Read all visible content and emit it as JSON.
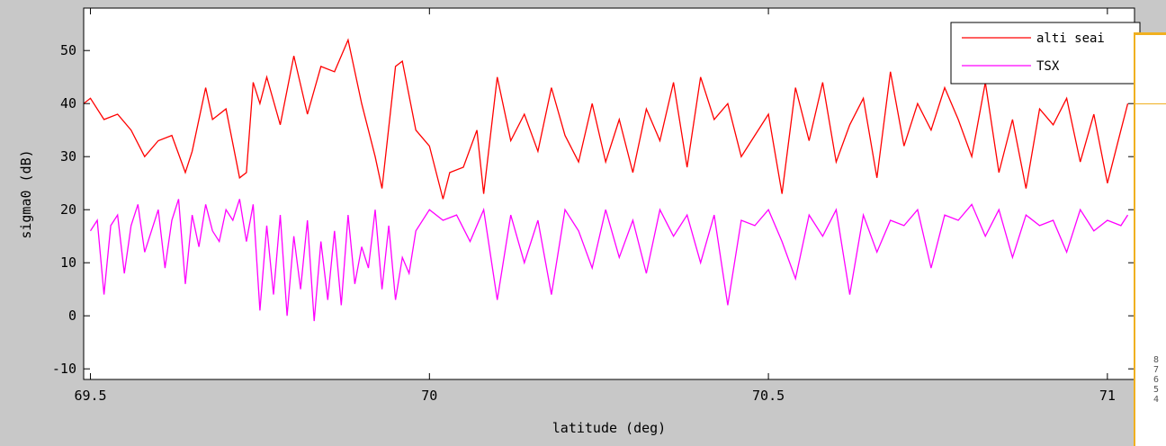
{
  "chart_data": {
    "type": "line",
    "xlabel": "latitude (deg)",
    "ylabel": "sigma0 (dB)",
    "xlim": [
      69.49,
      71.04
    ],
    "ylim": [
      -12,
      58
    ],
    "x_ticks": [
      "69.5",
      "70",
      "70.5",
      "71"
    ],
    "y_ticks": [
      "-10",
      "0",
      "10",
      "20",
      "30",
      "40",
      "50"
    ],
    "grid": false,
    "legend_position": "top-right",
    "series": [
      {
        "name": "alti seai",
        "color": "#ff0000",
        "x": [
          69.49,
          69.5,
          69.52,
          69.54,
          69.56,
          69.58,
          69.6,
          69.62,
          69.64,
          69.65,
          69.67,
          69.68,
          69.7,
          69.72,
          69.73,
          69.74,
          69.75,
          69.76,
          69.78,
          69.8,
          69.82,
          69.84,
          69.86,
          69.88,
          69.9,
          69.92,
          69.93,
          69.95,
          69.96,
          69.98,
          70.0,
          70.02,
          70.03,
          70.05,
          70.07,
          70.08,
          70.1,
          70.12,
          70.14,
          70.16,
          70.18,
          70.2,
          70.22,
          70.24,
          70.26,
          70.28,
          70.3,
          70.32,
          70.34,
          70.36,
          70.38,
          70.4,
          70.42,
          70.44,
          70.46,
          70.48,
          70.5,
          70.52,
          70.54,
          70.56,
          70.58,
          70.6,
          70.62,
          70.64,
          70.66,
          70.68,
          70.7,
          70.72,
          70.74,
          70.76,
          70.78,
          70.8,
          70.82,
          70.84,
          70.86,
          70.88,
          70.9,
          70.92,
          70.94,
          70.96,
          70.98,
          71.0,
          71.02,
          71.03
        ],
        "y": [
          40,
          41,
          37,
          38,
          35,
          30,
          33,
          34,
          27,
          31,
          43,
          37,
          39,
          26,
          27,
          44,
          40,
          45,
          36,
          49,
          38,
          47,
          46,
          52,
          40,
          30,
          24,
          47,
          48,
          35,
          32,
          22,
          27,
          28,
          35,
          23,
          45,
          33,
          38,
          31,
          43,
          34,
          29,
          40,
          29,
          37,
          27,
          39,
          33,
          44,
          28,
          45,
          37,
          40,
          30,
          34,
          38,
          23,
          43,
          33,
          44,
          29,
          36,
          41,
          26,
          46,
          32,
          40,
          35,
          43,
          37,
          30,
          44,
          27,
          37,
          24,
          39,
          36,
          41,
          29,
          38,
          25,
          35,
          40
        ]
      },
      {
        "name": "TSX",
        "color": "#ff00ff",
        "x": [
          69.5,
          69.51,
          69.52,
          69.53,
          69.54,
          69.55,
          69.56,
          69.57,
          69.58,
          69.6,
          69.61,
          69.62,
          69.63,
          69.64,
          69.65,
          69.66,
          69.67,
          69.68,
          69.69,
          69.7,
          69.71,
          69.72,
          69.73,
          69.74,
          69.75,
          69.76,
          69.77,
          69.78,
          69.79,
          69.8,
          69.81,
          69.82,
          69.83,
          69.84,
          69.85,
          69.86,
          69.87,
          69.88,
          69.89,
          69.9,
          69.91,
          69.92,
          69.93,
          69.94,
          69.95,
          69.96,
          69.97,
          69.98,
          70.0,
          70.02,
          70.04,
          70.06,
          70.08,
          70.1,
          70.12,
          70.14,
          70.16,
          70.18,
          70.2,
          70.22,
          70.24,
          70.26,
          70.28,
          70.3,
          70.32,
          70.34,
          70.36,
          70.38,
          70.4,
          70.42,
          70.44,
          70.46,
          70.48,
          70.5,
          70.52,
          70.54,
          70.56,
          70.58,
          70.6,
          70.62,
          70.64,
          70.66,
          70.68,
          70.7,
          70.72,
          70.74,
          70.76,
          70.78,
          70.8,
          70.82,
          70.84,
          70.86,
          70.88,
          70.9,
          70.92,
          70.94,
          70.96,
          70.98,
          71.0,
          71.02,
          71.03
        ],
        "y": [
          16,
          18,
          4,
          17,
          19,
          8,
          17,
          21,
          12,
          20,
          9,
          18,
          22,
          6,
          19,
          13,
          21,
          16,
          14,
          20,
          18,
          22,
          14,
          21,
          1,
          17,
          4,
          19,
          0,
          15,
          5,
          18,
          -1,
          14,
          3,
          16,
          2,
          19,
          6,
          13,
          9,
          20,
          5,
          17,
          3,
          11,
          8,
          16,
          20,
          18,
          19,
          14,
          20,
          3,
          19,
          10,
          18,
          4,
          20,
          16,
          9,
          20,
          11,
          18,
          8,
          20,
          15,
          19,
          10,
          19,
          2,
          18,
          17,
          20,
          14,
          7,
          19,
          15,
          20,
          4,
          19,
          12,
          18,
          17,
          20,
          9,
          19,
          18,
          21,
          15,
          20,
          11,
          19,
          17,
          18,
          12,
          20,
          16,
          18,
          17,
          19
        ]
      }
    ]
  },
  "popup": {
    "digits": [
      "8",
      "7",
      "6",
      "5",
      "4"
    ]
  }
}
